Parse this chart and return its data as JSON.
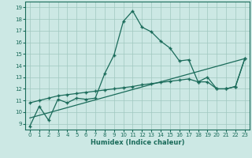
{
  "xlabel": "Humidex (Indice chaleur)",
  "xlim": [
    -0.5,
    23.5
  ],
  "ylim": [
    8.5,
    19.5
  ],
  "yticks": [
    9,
    10,
    11,
    12,
    13,
    14,
    15,
    16,
    17,
    18,
    19
  ],
  "xticks": [
    0,
    1,
    2,
    3,
    4,
    5,
    6,
    7,
    8,
    9,
    10,
    11,
    12,
    13,
    14,
    15,
    16,
    17,
    18,
    19,
    20,
    21,
    22,
    23
  ],
  "bg_color": "#cce8e4",
  "line_color": "#1a6b5a",
  "grid_color": "#a0c8c0",
  "line1_x": [
    0,
    1,
    2,
    3,
    4,
    5,
    6,
    7,
    8,
    9,
    10,
    11,
    12,
    13,
    14,
    15,
    16,
    17,
    18,
    19,
    20,
    21,
    22,
    23
  ],
  "line1_y": [
    8.8,
    10.5,
    9.3,
    11.1,
    10.8,
    11.2,
    11.1,
    11.2,
    13.3,
    14.9,
    17.8,
    18.7,
    17.3,
    16.9,
    16.1,
    15.5,
    14.4,
    14.5,
    12.6,
    13.0,
    12.0,
    12.0,
    12.2,
    14.6
  ],
  "line2_x": [
    0,
    1,
    2,
    3,
    4,
    5,
    6,
    7,
    8,
    9,
    10,
    11,
    12,
    13,
    14,
    15,
    16,
    17,
    18,
    19,
    20,
    21,
    22,
    23
  ],
  "line2_y": [
    10.8,
    11.0,
    11.2,
    11.4,
    11.5,
    11.6,
    11.7,
    11.8,
    11.9,
    12.0,
    12.1,
    12.2,
    12.35,
    12.45,
    12.55,
    12.65,
    12.75,
    12.85,
    12.6,
    12.6,
    12.0,
    12.0,
    12.2,
    14.6
  ],
  "line3_x": [
    0,
    23
  ],
  "line3_y": [
    9.5,
    14.6
  ]
}
